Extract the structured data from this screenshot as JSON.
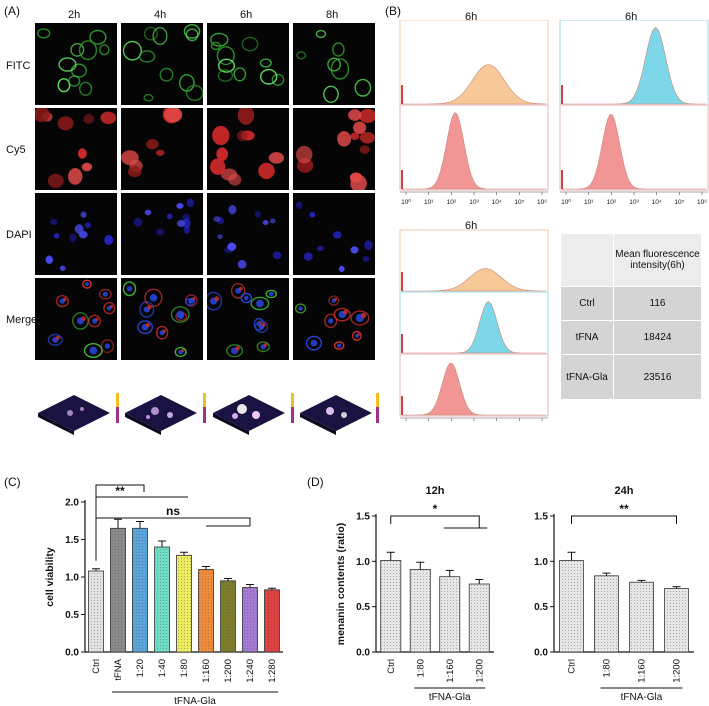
{
  "panel_A": {
    "label": "(A)",
    "time_labels": [
      "2h",
      "4h",
      "6h",
      "8h"
    ],
    "channels": [
      "FITC",
      "Cy5",
      "DAPI",
      "Merge"
    ]
  },
  "panel_B": {
    "label": "(B)",
    "hist_titles": [
      "6h",
      "6h",
      "6h"
    ],
    "x_ticks": [
      "10⁰",
      "10¹",
      "10²",
      "10³",
      "10⁴",
      "10⁵",
      "10⁶"
    ],
    "table": {
      "header": "Mean fluorescence intensity(6h)",
      "rows": [
        {
          "label": "Ctrl",
          "value": "116"
        },
        {
          "label": "tFNA",
          "value": "18424"
        },
        {
          "label": "tFNA-Gla",
          "value": "23516"
        }
      ]
    },
    "colors": {
      "ctrl": "#f08a8a",
      "tfna": "#6fd3e6",
      "tfna_gla": "#f7c48e"
    }
  },
  "panel_C": {
    "label": "(C)",
    "sig_labels": [
      "**",
      "ns"
    ],
    "group_label": "tFNA-Gla"
  },
  "panel_D": {
    "label": "(D)",
    "sig_labels": [
      "*",
      "**"
    ],
    "group_labels": [
      "tFNA-Gla",
      "tFNA-Gla"
    ]
  },
  "chart_data": [
    {
      "type": "bar",
      "panel": "C",
      "ylabel": "cell viability",
      "categories": [
        "Ctrl",
        "tFNA",
        "1:20",
        "1:40",
        "1:80",
        "1:160",
        "1:200",
        "1:240",
        "1:280"
      ],
      "values": [
        1.08,
        1.65,
        1.65,
        1.4,
        1.29,
        1.1,
        0.95,
        0.86,
        0.83
      ],
      "errors": [
        0.03,
        0.12,
        0.09,
        0.08,
        0.04,
        0.04,
        0.03,
        0.04,
        0.02
      ],
      "colors": [
        "#e2e2e2",
        "#8a8a8a",
        "#5aa6dc",
        "#6fdcc4",
        "#ecec5e",
        "#ef8c3a",
        "#7d7d2c",
        "#a57ad4",
        "#e04040"
      ],
      "ylim": [
        0,
        2.0
      ],
      "yticks": [
        "0.0",
        "0.5",
        "1.0",
        "1.5",
        "2.0"
      ]
    },
    {
      "type": "bar",
      "panel": "D-left",
      "title": "12h",
      "ylabel": "menanin contents  (ratio)",
      "categories": [
        "Ctrl",
        "1:80",
        "1:160",
        "1:200"
      ],
      "values": [
        1.01,
        0.91,
        0.83,
        0.75
      ],
      "errors": [
        0.09,
        0.08,
        0.07,
        0.05
      ],
      "ylim": [
        0,
        1.5
      ],
      "yticks": [
        "0.0",
        "0.5",
        "1.0",
        "1.5"
      ]
    },
    {
      "type": "bar",
      "panel": "D-right",
      "title": "24h",
      "categories": [
        "Ctrl",
        "1:80",
        "1:160",
        "1:200"
      ],
      "values": [
        1.01,
        0.84,
        0.77,
        0.7
      ],
      "errors": [
        0.09,
        0.03,
        0.02,
        0.02
      ],
      "ylim": [
        0,
        1.5
      ],
      "yticks": [
        "0.0",
        "0.5",
        "1.0",
        "1.5"
      ]
    }
  ]
}
